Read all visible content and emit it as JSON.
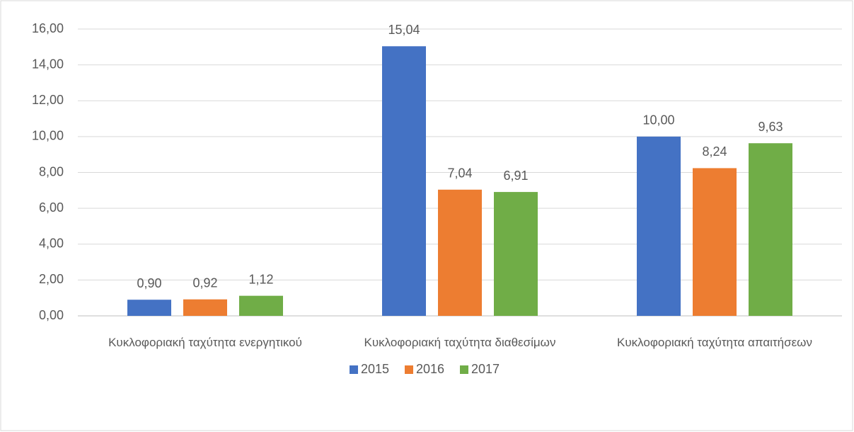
{
  "chart_data": {
    "type": "bar",
    "categories": [
      "Κυκλοφοριακή ταχύτητα ενεργητικού",
      "Κυκλοφοριακή ταχύτητα διαθεσίμων",
      "Κυκλοφοριακή ταχύτητα απαιτήσεων"
    ],
    "series": [
      {
        "name": "2015",
        "color": "#4472c4",
        "values": [
          0.9,
          15.04,
          10.0
        ],
        "value_labels": [
          "0,90",
          "15,04",
          "10,00"
        ]
      },
      {
        "name": "2016",
        "color": "#ed7d31",
        "values": [
          0.92,
          7.04,
          8.24
        ],
        "value_labels": [
          "0,92",
          "7,04",
          "8,24"
        ]
      },
      {
        "name": "2017",
        "color": "#70ad47",
        "values": [
          1.12,
          6.91,
          9.63
        ],
        "value_labels": [
          "1,12",
          "6,91",
          "9,63"
        ]
      }
    ],
    "ylim": [
      0,
      16
    ],
    "yticks": [
      {
        "value": 0,
        "label": "0,00"
      },
      {
        "value": 2,
        "label": "2,00"
      },
      {
        "value": 4,
        "label": "4,00"
      },
      {
        "value": 6,
        "label": "6,00"
      },
      {
        "value": 8,
        "label": "8,00"
      },
      {
        "value": 10,
        "label": "10,00"
      },
      {
        "value": 12,
        "label": "12,00"
      },
      {
        "value": 14,
        "label": "14,00"
      },
      {
        "value": 16,
        "label": "16,00"
      }
    ],
    "grid": true,
    "legend": "bottom"
  }
}
